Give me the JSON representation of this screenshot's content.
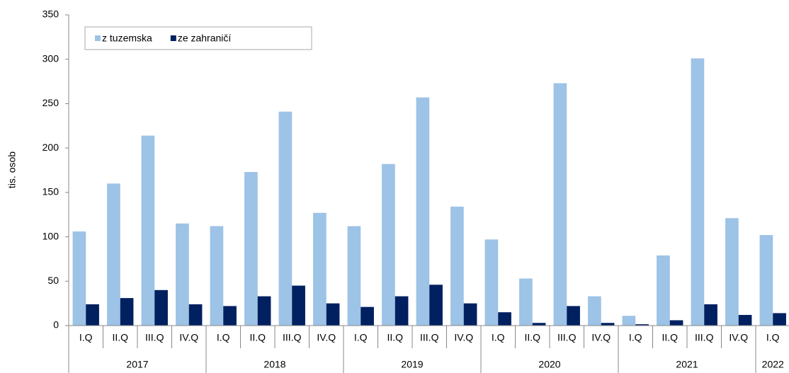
{
  "chart_data": {
    "type": "bar",
    "y_label": "tis. osob",
    "years": [
      {
        "label": "2017",
        "quarters": [
          "I.Q",
          "II.Q",
          "III.Q",
          "IV.Q"
        ]
      },
      {
        "label": "2018",
        "quarters": [
          "I.Q",
          "II.Q",
          "III.Q",
          "IV.Q"
        ]
      },
      {
        "label": "2019",
        "quarters": [
          "I.Q",
          "II.Q",
          "III.Q",
          "IV.Q"
        ]
      },
      {
        "label": "2020",
        "quarters": [
          "I.Q",
          "II.Q",
          "III.Q",
          "IV.Q"
        ]
      },
      {
        "label": "2021",
        "quarters": [
          "I.Q",
          "II.Q",
          "III.Q",
          "IV.Q"
        ]
      },
      {
        "label": "2022",
        "quarters": [
          "I.Q"
        ]
      }
    ],
    "series": [
      {
        "name": "z tuzemska",
        "color": "#9dc3e6",
        "values": [
          106,
          160,
          214,
          115,
          112,
          173,
          241,
          127,
          112,
          182,
          257,
          134,
          97,
          53,
          273,
          33,
          11,
          79,
          301,
          121,
          102
        ]
      },
      {
        "name": "ze zahraničí",
        "color": "#002060",
        "values": [
          24,
          31,
          40,
          24,
          22,
          33,
          45,
          25,
          21,
          33,
          46,
          25,
          15,
          3,
          22,
          3,
          1.5,
          6,
          24,
          12,
          14
        ]
      }
    ],
    "ylim": [
      0,
      350
    ],
    "yticks": [
      0,
      50,
      100,
      150,
      200,
      250,
      300,
      350
    ],
    "grid": false,
    "legend": "top-left"
  }
}
